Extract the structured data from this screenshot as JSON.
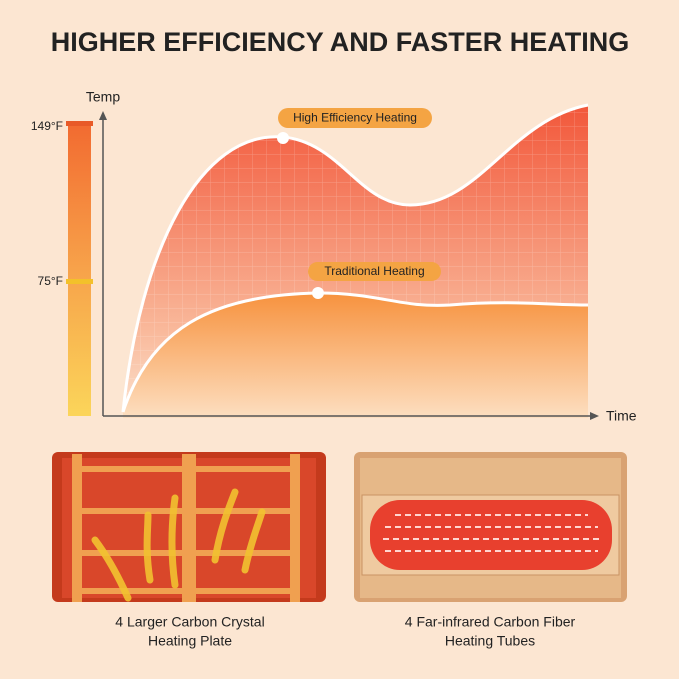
{
  "title": "HIGHER EFFICIENCY AND FASTER HEATING",
  "diagram": {
    "y_axis_label": "Temp",
    "x_axis_label": "Time",
    "temp_labels": [
      "149°F",
      "75°F"
    ],
    "curves": [
      "High Efficiency Heating",
      "Traditional Heating"
    ]
  },
  "panels": [
    {
      "caption": [
        "4 Larger Carbon Crystal",
        "Heating Plate"
      ]
    },
    {
      "caption": [
        "4 Far-infrared Carbon Fiber",
        "Heating Tubes"
      ]
    }
  ]
}
